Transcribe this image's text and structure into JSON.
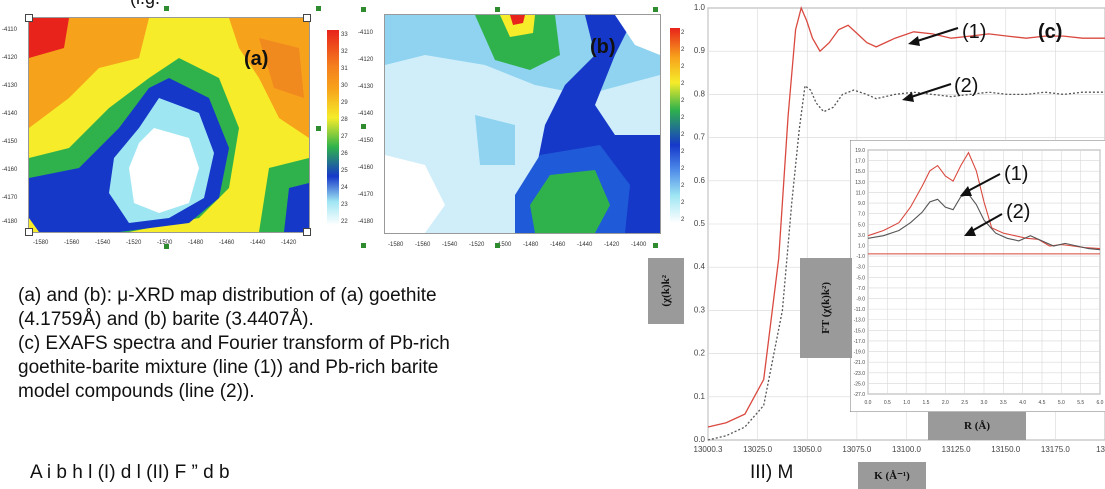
{
  "header_fragment_left": "(i.g.",
  "header_fragment_mid": "y,",
  "header_fragment_right": ",",
  "map_a": {
    "label": "(a)",
    "y_ticks": [
      "-4110",
      "-4120",
      "-4130",
      "-4140",
      "-4150",
      "-4160",
      "-4170",
      "-4180"
    ],
    "x_ticks": [
      "-1580",
      "-1560",
      "-1540",
      "-1520",
      "-1500",
      "-1480",
      "-1460",
      "-1440",
      "-1420"
    ],
    "colorbar_ticks": [
      "33",
      "32",
      "31",
      "30",
      "29",
      "28",
      "27",
      "26",
      "25",
      "24",
      "23",
      "22"
    ],
    "colors": {
      "hot": "#e8231b",
      "warm": "#f7a21b",
      "yellow": "#f6ec2a",
      "green": "#2fb24c",
      "blue": "#1638c9",
      "light": "#9fe6f3",
      "white": "#ffffff"
    }
  },
  "map_b": {
    "label": "(b)",
    "y_ticks": [
      "-4110",
      "-4120",
      "-4130",
      "-4140",
      "-4150",
      "-4160",
      "-4170",
      "-4180"
    ],
    "x_ticks": [
      "-1580",
      "-1560",
      "-1540",
      "-1520",
      "-1500",
      "-1480",
      "-1460",
      "-1440",
      "-1420",
      "-1400"
    ],
    "colorbar_ticks": [
      "2",
      "2",
      "2",
      "2",
      "2",
      "2",
      "2",
      "2",
      "2",
      "2",
      "2",
      "2"
    ]
  },
  "caption": {
    "line1": "(a) and (b):  μ-XRD map distribution of (a) goethite",
    "line2": "(4.1759Å) and (b) barite (3.4407Å).",
    "line3": "(c) EXAFS spectra and Fourier transform of Pb-rich",
    "line4": "goethite-barite mixture (line (1)) and Pb-rich barite",
    "line5": "model compounds (line (2))."
  },
  "chart_data": [
    {
      "type": "line",
      "title": "(c)",
      "xlabel": "K (Å⁻¹)",
      "ylabel": "(χ(k)k²",
      "xlim": [
        13000.3,
        13212
      ],
      "ylim": [
        0.0,
        1.0
      ],
      "x_ticks": [
        "13000.3",
        "13025.0",
        "13050.0",
        "13075.0",
        "13100.0",
        "13125.0",
        "13150.0",
        "13175.0",
        "1321"
      ],
      "y_ticks": [
        "0.0",
        "0.1",
        "0.2",
        "0.3",
        "0.4",
        "0.5",
        "0.6",
        "0.7",
        "0.8",
        "0.9",
        "1.0"
      ],
      "annotations": [
        "(1)",
        "(2)"
      ],
      "series": [
        {
          "name": "(1)",
          "color": "#d9493f",
          "x": [
            13000.3,
            13010,
            13020,
            13030,
            13038,
            13043,
            13047,
            13050,
            13053,
            13056,
            13060,
            13065,
            13070,
            13075,
            13080,
            13085,
            13090,
            13100,
            13110,
            13120,
            13130,
            13140,
            13150,
            13160,
            13170,
            13180,
            13190,
            13200,
            13212
          ],
          "y": [
            0.03,
            0.04,
            0.06,
            0.14,
            0.42,
            0.75,
            0.95,
            1.0,
            0.97,
            0.93,
            0.9,
            0.92,
            0.95,
            0.96,
            0.94,
            0.92,
            0.91,
            0.93,
            0.945,
            0.94,
            0.93,
            0.935,
            0.94,
            0.935,
            0.93,
            0.935,
            0.935,
            0.93,
            0.93
          ]
        },
        {
          "name": "(2)",
          "color": "#555555",
          "x": [
            13000.3,
            13010,
            13020,
            13030,
            13040,
            13045,
            13049,
            13052,
            13055,
            13058,
            13062,
            13067,
            13072,
            13078,
            13085,
            13090,
            13100,
            13110,
            13120,
            13130,
            13140,
            13150,
            13160,
            13170,
            13180,
            13190,
            13200,
            13212
          ],
          "y": [
            0.0,
            0.01,
            0.03,
            0.08,
            0.3,
            0.55,
            0.72,
            0.82,
            0.81,
            0.78,
            0.76,
            0.77,
            0.8,
            0.81,
            0.8,
            0.79,
            0.8,
            0.805,
            0.8,
            0.795,
            0.8,
            0.805,
            0.8,
            0.8,
            0.805,
            0.8,
            0.805,
            0.805
          ]
        }
      ]
    },
    {
      "type": "line",
      "title": "",
      "xlabel": "R (Å)",
      "ylabel": "FT (χ(k)k²)",
      "xlim": [
        0.0,
        6.0
      ],
      "ylim": [
        -27.0,
        20.0
      ],
      "x_ticks": [
        "0.0",
        "0.5",
        "1.0",
        "1.5",
        "2.0",
        "2.5",
        "3.0",
        "3.5",
        "4.0",
        "4.5",
        "5.0",
        "5.5",
        "6.0"
      ],
      "y_ticks": [
        "19.0",
        "17.0",
        "15.0",
        "13.0",
        "11.0",
        "9.0",
        "7.0",
        "5.0",
        "3.0",
        "1.0",
        "-1.0",
        "-3.0",
        "-5.0",
        "-7.0",
        "-9.0",
        "-11.0",
        "-13.0",
        "-15.0",
        "-17.0",
        "-19.0",
        "-21.0",
        "-23.0",
        "-25.0",
        "-27.0"
      ],
      "annotations": [
        "(1)",
        "(2)"
      ],
      "series": [
        {
          "name": "(1)",
          "color": "#d9493f",
          "x": [
            0.0,
            0.4,
            0.8,
            1.1,
            1.4,
            1.6,
            1.8,
            2.0,
            2.2,
            2.4,
            2.6,
            2.8,
            3.0,
            3.2,
            3.5,
            3.8,
            4.1,
            4.4,
            4.7,
            5.0,
            5.3,
            5.6,
            6.0
          ],
          "y": [
            3.5,
            4.5,
            6,
            9,
            13,
            16,
            17,
            15,
            14,
            17,
            19.5,
            16,
            10,
            5,
            4,
            3.5,
            3,
            2.8,
            1.5,
            1.8,
            1.5,
            1.2,
            1.0
          ]
        },
        {
          "name": "(2)",
          "color": "#555555",
          "x": [
            0.0,
            0.4,
            0.8,
            1.1,
            1.4,
            1.6,
            1.8,
            2.0,
            2.2,
            2.4,
            2.6,
            2.8,
            3.0,
            3.3,
            3.6,
            3.9,
            4.2,
            4.5,
            4.8,
            5.1,
            5.4,
            5.7,
            6.0
          ],
          "y": [
            3.0,
            3.5,
            4.5,
            6,
            8,
            10,
            10.5,
            9,
            8.5,
            11,
            11.5,
            9.5,
            6.5,
            4,
            3,
            2.5,
            3.5,
            2.5,
            1.5,
            2,
            1.5,
            1.0,
            0.8
          ]
        }
      ]
    }
  ],
  "footer_fragment_left": "A   i  b   h         l    (I)    d   l     (II)   F  ”    d   b",
  "footer_fragment_right": "III)  M"
}
